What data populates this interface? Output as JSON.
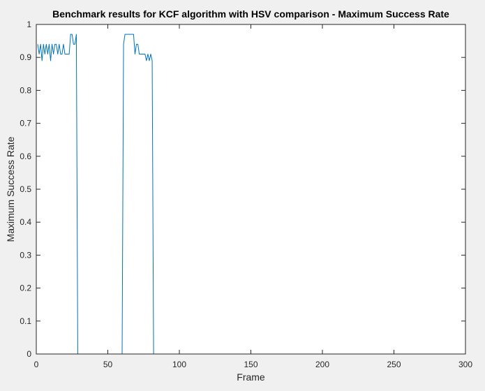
{
  "chart_data": {
    "type": "line",
    "title": "Benchmark results for KCF algorithm with HSV comparison - Maximum Success Rate",
    "xlabel": "Frame",
    "ylabel": "Maximum Success Rate",
    "xlim": [
      0,
      300
    ],
    "ylim": [
      0,
      1
    ],
    "xticks": [
      0,
      50,
      100,
      150,
      200,
      250,
      300
    ],
    "yticks": [
      0,
      0.1,
      0.2,
      0.3,
      0.4,
      0.5,
      0.6,
      0.7,
      0.8,
      0.9,
      1
    ],
    "xtick_labels": [
      "0",
      "50",
      "100",
      "150",
      "200",
      "250",
      "300"
    ],
    "ytick_labels": [
      "0",
      "0.1",
      "0.2",
      "0.3",
      "0.4",
      "0.5",
      "0.6",
      "0.7",
      "0.8",
      "0.9",
      "1"
    ],
    "grid": false,
    "line_color": "#0072bd",
    "series": [
      {
        "x": [
          1,
          2,
          3,
          4,
          5,
          6,
          7,
          8,
          9,
          10,
          11,
          12,
          13,
          14,
          15,
          16,
          17,
          18,
          19,
          20,
          21,
          22,
          23,
          24,
          25,
          26,
          27,
          28,
          29,
          30,
          31,
          59,
          60,
          61,
          62,
          63,
          64,
          65,
          66,
          67,
          68,
          69,
          70,
          71,
          72,
          73,
          74,
          75,
          76,
          77,
          78,
          79,
          80,
          81,
          82,
          83,
          268
        ],
        "y": [
          0.94,
          0.91,
          0.94,
          0.89,
          0.94,
          0.91,
          0.94,
          0.91,
          0.94,
          0.89,
          0.94,
          0.91,
          0.94,
          0.94,
          0.91,
          0.94,
          0.91,
          0.91,
          0.94,
          0.91,
          0.91,
          0.91,
          0.91,
          0.97,
          0.97,
          0.94,
          0.94,
          0.97,
          0.0,
          0.0,
          0.0,
          0.0,
          0.0,
          0.94,
          0.97,
          0.97,
          0.97,
          0.97,
          0.97,
          0.97,
          0.97,
          0.91,
          0.94,
          0.94,
          0.91,
          0.91,
          0.91,
          0.91,
          0.91,
          0.89,
          0.91,
          0.89,
          0.91,
          0.89,
          0.0,
          0.0,
          0.0
        ]
      }
    ]
  }
}
